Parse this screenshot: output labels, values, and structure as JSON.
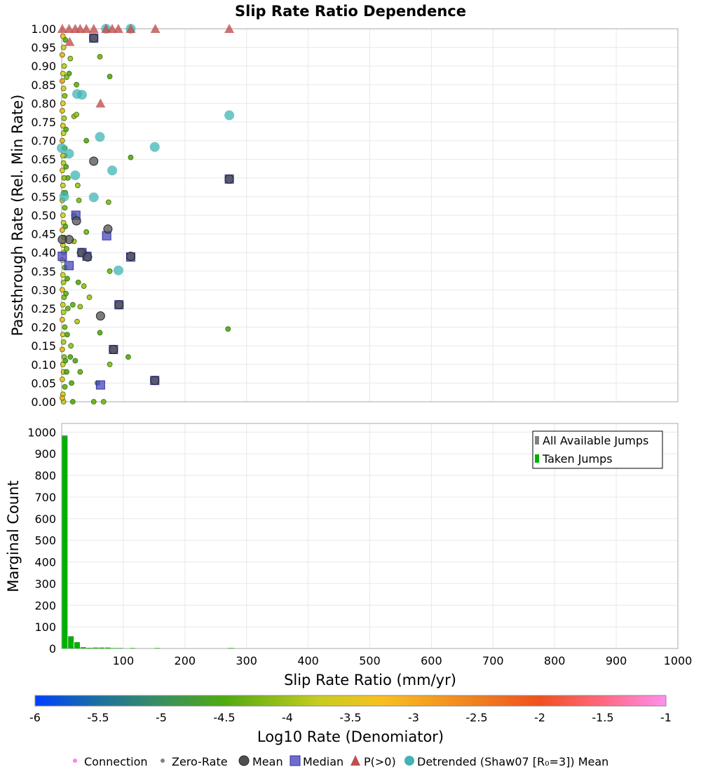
{
  "chart_data": [
    {
      "type": "scatter",
      "title": "Slip Rate Ratio Dependence",
      "ylabel": "Passthrough Rate (Rel. Min Rate)",
      "xlim": [
        0,
        1000
      ],
      "ylim": [
        0,
        1
      ],
      "yticks": [
        "0.00",
        "0.05",
        "0.10",
        "0.15",
        "0.20",
        "0.25",
        "0.30",
        "0.35",
        "0.40",
        "0.45",
        "0.50",
        "0.55",
        "0.60",
        "0.65",
        "0.70",
        "0.75",
        "0.80",
        "0.85",
        "0.90",
        "0.95",
        "1.00"
      ],
      "grid": true,
      "points": [
        [
          62,
          0.925,
          -4.3
        ],
        [
          78,
          0.872,
          -4.5
        ],
        [
          12,
          0.88,
          -4.5
        ],
        [
          24,
          0.85,
          -4.4
        ],
        [
          8,
          0.87,
          -4.2
        ],
        [
          20,
          0.765,
          -4.1
        ],
        [
          24,
          0.77,
          -4.0
        ],
        [
          40,
          0.7,
          -4.5
        ],
        [
          5,
          0.66,
          -4.4
        ],
        [
          26,
          0.58,
          -4.0
        ],
        [
          112,
          0.655,
          -4.5
        ],
        [
          76,
          0.535,
          -4.2
        ],
        [
          40,
          0.455,
          -4.3
        ],
        [
          36,
          0.31,
          -4.1
        ],
        [
          45,
          0.28,
          -4.0
        ],
        [
          78,
          0.35,
          -4.3
        ],
        [
          270,
          0.195,
          -4.6
        ],
        [
          108,
          0.12,
          -4.5
        ],
        [
          62,
          0.185,
          -4.5
        ],
        [
          25,
          0.215,
          -3.9
        ],
        [
          78,
          0.1,
          -4.2
        ],
        [
          30,
          0.08,
          -4.4
        ],
        [
          58,
          0.05,
          -4.5
        ],
        [
          68,
          0.0,
          -4.3
        ],
        [
          52,
          0.0,
          -4.4
        ],
        [
          18,
          0.0,
          -4.5
        ],
        [
          22,
          0.11,
          -4.6
        ],
        [
          15,
          0.15,
          -4.1
        ],
        [
          10,
          0.25,
          -4.4
        ],
        [
          30,
          0.255,
          -4.0
        ],
        [
          9,
          0.33,
          -4.5
        ],
        [
          14,
          0.12,
          -4.6
        ],
        [
          27,
          0.32,
          -4.5
        ],
        [
          18,
          0.26,
          -4.4
        ],
        [
          20,
          0.43,
          -4.0
        ],
        [
          28,
          0.54,
          -4.2
        ],
        [
          14,
          0.92,
          -4.0
        ],
        [
          20,
          0.5,
          -4.5
        ],
        [
          10,
          0.6,
          -4.4
        ],
        [
          16,
          0.05,
          -4.5
        ],
        [
          2,
          0.98,
          -3.2
        ],
        [
          3,
          0.95,
          -3.6
        ],
        [
          1,
          0.93,
          -3.0
        ],
        [
          4,
          0.9,
          -3.8
        ],
        [
          2,
          0.88,
          -3.4
        ],
        [
          1,
          0.86,
          -2.9
        ],
        [
          3,
          0.84,
          -3.5
        ],
        [
          5,
          0.82,
          -4.2
        ],
        [
          2,
          0.8,
          -3.3
        ],
        [
          1,
          0.78,
          -3.1
        ],
        [
          4,
          0.76,
          -3.9
        ],
        [
          2,
          0.74,
          -3.4
        ],
        [
          3,
          0.72,
          -3.7
        ],
        [
          1,
          0.7,
          -3.0
        ],
        [
          5,
          0.68,
          -4.4
        ],
        [
          2,
          0.66,
          -3.5
        ],
        [
          3,
          0.64,
          -3.8
        ],
        [
          1,
          0.62,
          -3.2
        ],
        [
          4,
          0.6,
          -4.1
        ],
        [
          2,
          0.58,
          -3.6
        ],
        [
          3,
          0.56,
          -3.9
        ],
        [
          1,
          0.54,
          -3.0
        ],
        [
          5,
          0.52,
          -4.3
        ],
        [
          2,
          0.5,
          -3.5
        ],
        [
          3,
          0.48,
          -3.7
        ],
        [
          1,
          0.46,
          -3.1
        ],
        [
          4,
          0.44,
          -4.0
        ],
        [
          2,
          0.42,
          -3.4
        ],
        [
          3,
          0.4,
          -3.8
        ],
        [
          1,
          0.38,
          -3.0
        ],
        [
          5,
          0.36,
          -4.4
        ],
        [
          2,
          0.34,
          -3.5
        ],
        [
          3,
          0.32,
          -3.9
        ],
        [
          1,
          0.3,
          -3.2
        ],
        [
          4,
          0.28,
          -4.2
        ],
        [
          2,
          0.26,
          -3.6
        ],
        [
          3,
          0.24,
          -3.8
        ],
        [
          1,
          0.22,
          -3.1
        ],
        [
          5,
          0.2,
          -4.3
        ],
        [
          2,
          0.18,
          -3.5
        ],
        [
          3,
          0.16,
          -3.9
        ],
        [
          1,
          0.14,
          -3.0
        ],
        [
          4,
          0.12,
          -4.1
        ],
        [
          2,
          0.1,
          -3.4
        ],
        [
          3,
          0.08,
          -3.7
        ],
        [
          1,
          0.06,
          -3.2
        ],
        [
          5,
          0.04,
          -4.4
        ],
        [
          2,
          0.02,
          -3.6
        ],
        [
          3,
          0.0,
          -3.8
        ],
        [
          1,
          0.01,
          -3.0
        ],
        [
          6,
          0.97,
          -4.5
        ],
        [
          7,
          0.63,
          -4.6
        ],
        [
          6,
          0.47,
          -4.5
        ],
        [
          7,
          0.29,
          -4.4
        ],
        [
          6,
          0.11,
          -4.6
        ],
        [
          8,
          0.41,
          -4.3
        ],
        [
          7,
          0.73,
          -4.5
        ],
        [
          9,
          0.18,
          -4.5
        ],
        [
          6,
          0.56,
          -4.4
        ],
        [
          8,
          0.08,
          -4.5
        ]
      ],
      "series": [
        {
          "name": "Mean",
          "points": [
            [
              52,
              0.975
            ],
            [
              52,
              0.645
            ],
            [
              24,
              0.485
            ],
            [
              75,
              0.463
            ],
            [
              12,
              0.435
            ],
            [
              1,
              0.435
            ],
            [
              32,
              0.4
            ],
            [
              42,
              0.388
            ],
            [
              63,
              0.23
            ],
            [
              93,
              0.26
            ],
            [
              84,
              0.14
            ],
            [
              151,
              0.057
            ],
            [
              272,
              0.597
            ],
            [
              112,
              0.39
            ]
          ]
        },
        {
          "name": "Median",
          "points": [
            [
              52,
              0.975
            ],
            [
              23,
              0.5
            ],
            [
              73,
              0.445
            ],
            [
              1,
              0.39
            ],
            [
              12,
              0.365
            ],
            [
              33,
              0.4
            ],
            [
              41,
              0.39
            ],
            [
              112,
              0.388
            ],
            [
              93,
              0.26
            ],
            [
              84,
              0.14
            ],
            [
              63,
              0.045
            ],
            [
              151,
              0.057
            ],
            [
              272,
              0.597
            ]
          ]
        },
        {
          "name": "P(>0)",
          "points": [
            [
              1,
              1.0
            ],
            [
              12,
              1.0
            ],
            [
              22,
              1.0
            ],
            [
              30,
              1.0
            ],
            [
              40,
              1.0
            ],
            [
              52,
              1.0
            ],
            [
              72,
              1.0
            ],
            [
              82,
              1.0
            ],
            [
              92,
              1.0
            ],
            [
              112,
              1.0
            ],
            [
              152,
              1.0
            ],
            [
              272,
              1.0
            ],
            [
              13,
              0.965
            ],
            [
              63,
              0.8
            ]
          ]
        },
        {
          "name": "Detrended (Shaw07 [R₀=3]) Mean",
          "points": [
            [
              25,
              0.825
            ],
            [
              33,
              0.823
            ],
            [
              62,
              0.71
            ],
            [
              272,
              0.768
            ],
            [
              151,
              0.683
            ],
            [
              12,
              0.665
            ],
            [
              82,
              0.62
            ],
            [
              22,
              0.607
            ],
            [
              52,
              0.548
            ],
            [
              92,
              0.352
            ],
            [
              0,
              0.68
            ],
            [
              72,
              1.0
            ],
            [
              112,
              1.0
            ],
            [
              4,
              0.55
            ]
          ]
        }
      ]
    },
    {
      "type": "bar",
      "ylabel": "Marginal Count",
      "xlabel": "Slip Rate Ratio (mm/yr)",
      "xlim": [
        0,
        1000
      ],
      "ylim": [
        0,
        1040
      ],
      "xticks": [
        "100",
        "200",
        "300",
        "400",
        "500",
        "600",
        "700",
        "800",
        "900",
        "1000"
      ],
      "yticks": [
        "0",
        "100",
        "200",
        "300",
        "400",
        "500",
        "600",
        "700",
        "800",
        "900",
        "1000"
      ],
      "bin_width": 10,
      "bin_starts": [
        0,
        10,
        20,
        30,
        40,
        50,
        60,
        70,
        80,
        90,
        110,
        150,
        270
      ],
      "series": [
        {
          "name": "All Available Jumps",
          "color": "#808080",
          "values": [
            985,
            57,
            30,
            6,
            3,
            4,
            4,
            4,
            2,
            2,
            2,
            2,
            2
          ]
        },
        {
          "name": "Taken Jumps",
          "color": "#00b000",
          "values": [
            980,
            55,
            28,
            5,
            3,
            4,
            4,
            4,
            2,
            2,
            2,
            2,
            2
          ]
        }
      ],
      "legend_position": "top-right"
    }
  ],
  "colorbar": {
    "label": "Log10 Rate (Denomiator)",
    "range": [
      -6,
      -1
    ],
    "ticks": [
      "-6",
      "-5.5",
      "-5",
      "-4.5",
      "-4",
      "-3.5",
      "-3",
      "-2.5",
      "-2",
      "-1.5",
      "-1"
    ]
  },
  "legend": {
    "items": [
      "Connection",
      "Zero-Rate",
      "Mean",
      "Median",
      "P(>0)",
      "Detrended (Shaw07 [R₀=3]) Mean"
    ]
  },
  "colors": {
    "mean": "#505050",
    "median": "#4848c0",
    "p": "#c05050",
    "detrended": "#40b4b4",
    "connection": "#ff80f0",
    "zero": "#808080"
  }
}
